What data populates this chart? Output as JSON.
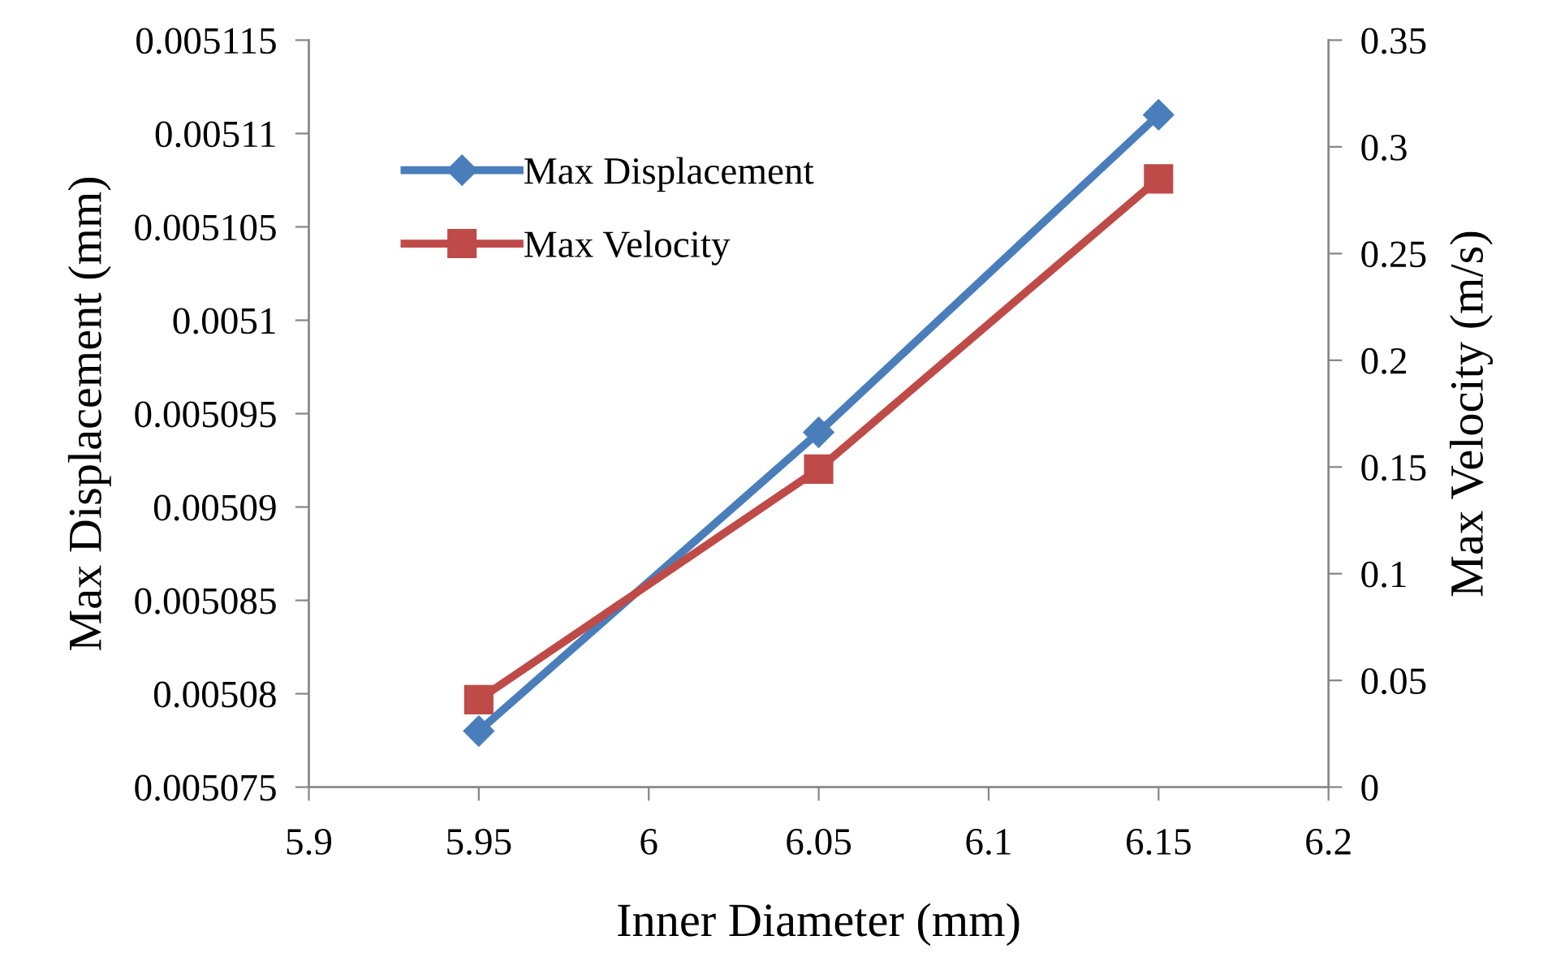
{
  "chart_data": {
    "type": "line",
    "xlabel": "Inner Diameter (mm)",
    "ylabel": "Max Displacement (mm)",
    "y2label": "Max Velocity (m/s)",
    "x": [
      5.95,
      6.05,
      6.15
    ],
    "series": [
      {
        "name": "Max Displacement",
        "color": "#4a7ebb",
        "marker": "diamond",
        "values": [
          0.005078,
          0.005094,
          0.005111
        ]
      },
      {
        "name": "Max Velocity",
        "color": "#be4b48",
        "marker": "square",
        "axis": "y2",
        "values": [
          0.041,
          0.149,
          0.285
        ]
      }
    ],
    "xlim": [
      5.9,
      6.2
    ],
    "xticks": [
      5.9,
      5.95,
      6,
      6.05,
      6.1,
      6.15,
      6.2
    ],
    "ylim": [
      0.005075,
      0.005115
    ],
    "yticks": [
      0.005075,
      0.00508,
      0.005085,
      0.00509,
      0.005095,
      0.0051,
      0.005105,
      0.00511,
      0.005115
    ],
    "y2lim": [
      0,
      0.35
    ],
    "y2ticks": [
      0,
      0.05,
      0.1,
      0.15,
      0.2,
      0.25,
      0.3,
      0.35
    ],
    "grid": false,
    "legend": "top left",
    "line_style": "solid"
  }
}
